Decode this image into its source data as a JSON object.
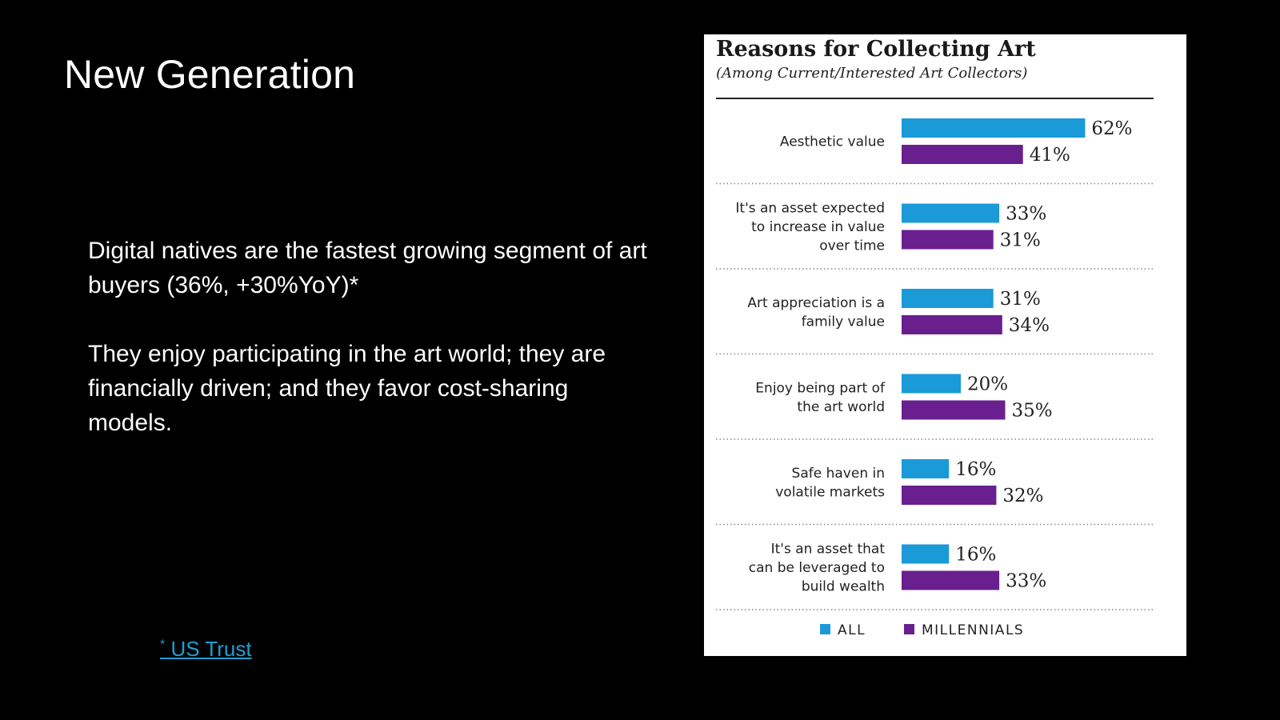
{
  "slide": {
    "title": "New Generation",
    "paragraphs": [
      "Digital natives are the fastest growing segment of art buyers (36%, +30%YoY)*",
      "They enjoy participating in the art world; they are financially driven; and they favor cost-sharing models."
    ],
    "footnote": {
      "star": "*",
      "label": "US Trust"
    }
  },
  "chart_data": {
    "type": "bar",
    "orientation": "horizontal",
    "title": "Reasons for Collecting Art",
    "subtitle": "(Among Current/Interested Art Collectors)",
    "categories": [
      [
        "Aesthetic value"
      ],
      [
        "It's an asset expected",
        "to increase in value",
        "over time"
      ],
      [
        "Art appreciation is a",
        "family value"
      ],
      [
        "Enjoy being part of",
        "the art world"
      ],
      [
        "Safe haven in",
        "volatile markets"
      ],
      [
        "It's an asset that",
        "can be leveraged to",
        "build wealth"
      ]
    ],
    "series": [
      {
        "name": "ALL",
        "color": "#1a9ad7",
        "values": [
          62,
          33,
          31,
          20,
          16,
          16
        ]
      },
      {
        "name": "MILLENNIALS",
        "color": "#6a1f8f",
        "values": [
          41,
          31,
          34,
          35,
          32,
          33
        ]
      }
    ],
    "value_suffix": "%",
    "xlim": [
      0,
      100
    ],
    "grid": false,
    "legend": "bottom"
  }
}
